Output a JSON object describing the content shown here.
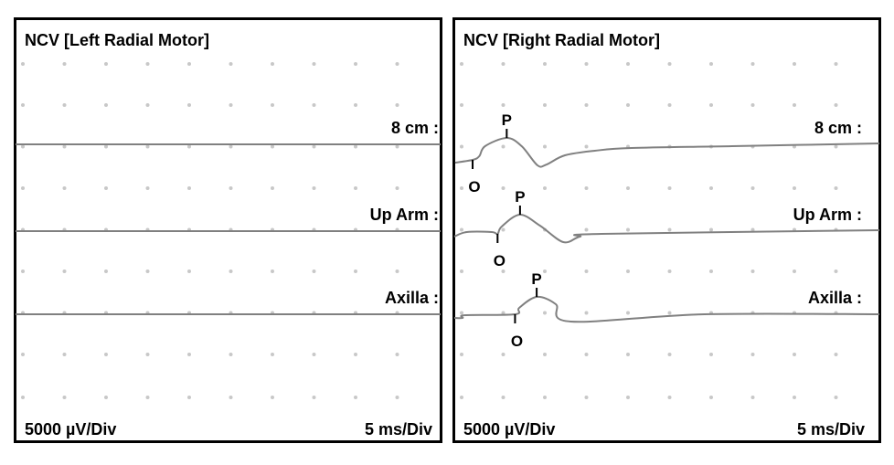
{
  "chart_data": [
    {
      "type": "line",
      "title": "NCV [Left Radial Motor]",
      "y_scale_label": "5000 µV/Div",
      "x_scale_label": "5 ms/Div",
      "x_per_div_ms": 5,
      "y_per_div_uV": 5000,
      "grid": "dots",
      "line_color": "#808080",
      "series": [
        {
          "label": "8 cm :",
          "points": [
            [
              0,
              0
            ],
            [
              51.2,
              0
            ]
          ],
          "markers": []
        },
        {
          "label": "Up Arm :",
          "points": [
            [
              0,
              0
            ],
            [
              51.2,
              0
            ]
          ],
          "markers": []
        },
        {
          "label": "Axilla :",
          "points": [
            [
              0,
              0
            ],
            [
              51.2,
              0
            ]
          ],
          "markers": []
        }
      ]
    },
    {
      "type": "line",
      "title": "NCV [Right Radial Motor]",
      "y_scale_label": "5000 µV/Div",
      "x_scale_label": "5 ms/Div",
      "x_per_div_ms": 5,
      "y_per_div_uV": 5000,
      "grid": "dots",
      "line_color": "#808080",
      "series": [
        {
          "label": "8 cm :",
          "points": [
            [
              0.1,
              -2198
            ],
            [
              2.2,
              -1868
            ],
            [
              3.0,
              -1429
            ],
            [
              3.7,
              -220
            ],
            [
              6.3,
              769
            ],
            [
              8.1,
              -220
            ],
            [
              10.0,
              -2527
            ],
            [
              11.1,
              -2418
            ],
            [
              13.3,
              -1319
            ],
            [
              16.9,
              -769
            ],
            [
              21.3,
              -440
            ],
            [
              33.4,
              -220
            ],
            [
              51.2,
              110
            ]
          ],
          "markers": [
            {
              "label": "O",
              "t": 2.2,
              "v": -1868,
              "dir": "down"
            },
            {
              "label": "P",
              "t": 6.3,
              "v": 769,
              "dir": "up"
            }
          ]
        },
        {
          "label": "Up Arm :",
          "points": [
            [
              0,
              -659
            ],
            [
              1.5,
              -110
            ],
            [
              4.5,
              -110
            ],
            [
              5.2,
              -330
            ],
            [
              5.7,
              549
            ],
            [
              7.9,
              1978
            ],
            [
              10.3,
              659
            ],
            [
              13.1,
              -1319
            ],
            [
              15.1,
              -659
            ],
            [
              17.7,
              -330
            ],
            [
              51.2,
              110
            ]
          ],
          "markers": [
            {
              "label": "O",
              "t": 5.2,
              "v": -330,
              "dir": "down"
            },
            {
              "label": "P",
              "t": 7.9,
              "v": 1978,
              "dir": "up"
            }
          ]
        },
        {
          "label": "Axilla :",
          "points": [
            [
              0,
              -440
            ],
            [
              1.0,
              -440
            ],
            [
              1.3,
              -110
            ],
            [
              7.3,
              0
            ],
            [
              7.8,
              769
            ],
            [
              9.9,
              2088
            ],
            [
              12.2,
              1209
            ],
            [
              14.0,
              -879
            ],
            [
              30.1,
              0
            ],
            [
              51.2,
              0
            ]
          ],
          "markers": [
            {
              "label": "O",
              "t": 7.3,
              "v": 0,
              "dir": "down"
            },
            {
              "label": "P",
              "t": 9.9,
              "v": 2088,
              "dir": "up"
            }
          ]
        }
      ]
    }
  ]
}
